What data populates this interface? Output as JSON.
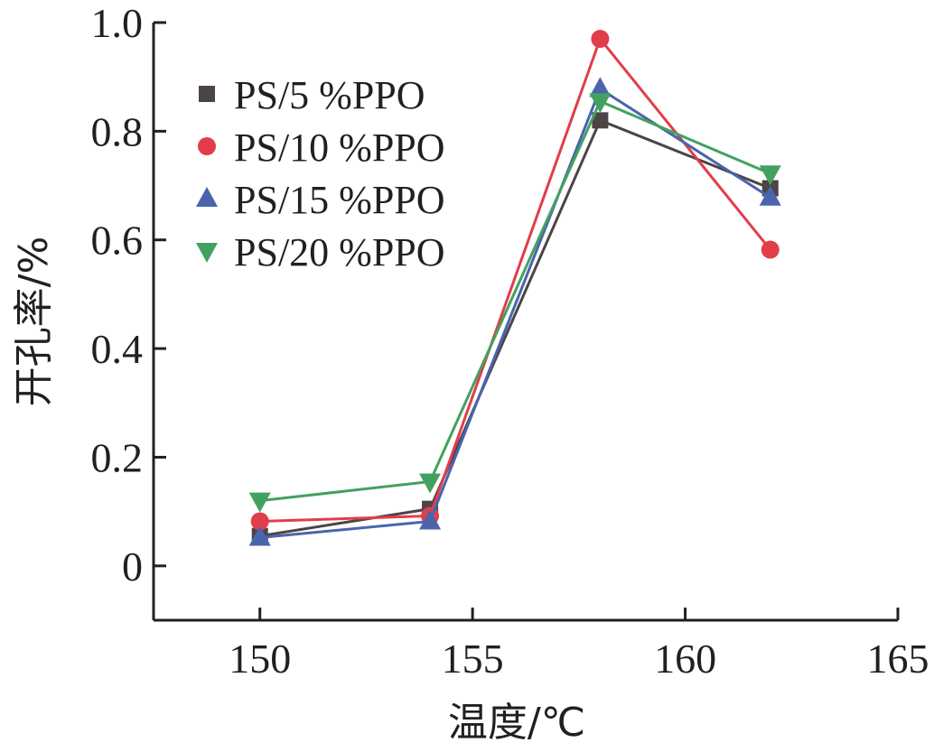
{
  "chart_data": {
    "type": "line",
    "xlabel": "温度/℃",
    "ylabel": "开孔率/%",
    "xlim": [
      147.5,
      165
    ],
    "ylim": [
      -0.1,
      1.0
    ],
    "xticks": [
      150,
      155,
      160,
      165
    ],
    "xtick_labels": [
      "150",
      "155",
      "160",
      "165"
    ],
    "yticks": [
      0,
      0.2,
      0.4,
      0.6,
      0.8,
      1.0
    ],
    "ytick_labels": [
      "0",
      "0.2",
      "0.4",
      "0.6",
      "0.8",
      "1.0"
    ],
    "grid": false,
    "legend_position": "top-left",
    "x": [
      150,
      154,
      158,
      162
    ],
    "series": [
      {
        "name": "PS/5 %PPO",
        "values": [
          0.055,
          0.105,
          0.82,
          0.695
        ],
        "color": "#4d4446",
        "marker": "square"
      },
      {
        "name": "PS/10 %PPO",
        "values": [
          0.082,
          0.092,
          0.97,
          0.582
        ],
        "color": "#e23d4b",
        "marker": "circle"
      },
      {
        "name": "PS/15 %PPO",
        "values": [
          0.052,
          0.082,
          0.878,
          0.678
        ],
        "color": "#4a64ad",
        "marker": "triangle-up"
      },
      {
        "name": "PS/20 %PPO",
        "values": [
          0.12,
          0.155,
          0.855,
          0.722
        ],
        "color": "#43a160",
        "marker": "triangle-down"
      }
    ]
  }
}
